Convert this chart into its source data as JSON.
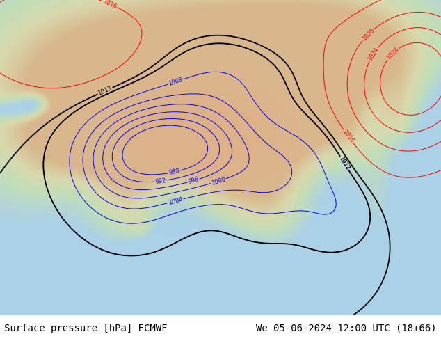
{
  "title_left": "Surface pressure [hPa] ECMWF",
  "title_right": "We 05-06-2024 12:00 UTC (18+66)",
  "text_color": "#000000",
  "font_family": "monospace",
  "font_size_title": 10,
  "fig_width": 6.34,
  "fig_height": 4.9,
  "dpi": 100,
  "ocean_color": [
    0.67,
    0.82,
    0.9
  ],
  "land_low_color": [
    0.76,
    0.87,
    0.72
  ],
  "land_mid_color": [
    0.85,
    0.85,
    0.68
  ],
  "land_high_color": [
    0.88,
    0.78,
    0.62
  ],
  "plateau_color": [
    0.85,
    0.72,
    0.55
  ],
  "isobar_blue": "#0000ff",
  "isobar_red": "#ff0000",
  "isobar_black": "#000000",
  "label_fontsize": 6,
  "contour_linewidth": 0.7,
  "black_linewidth": 1.3
}
